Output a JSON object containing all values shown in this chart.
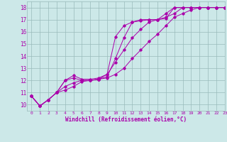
{
  "xlabel": "Windchill (Refroidissement éolien,°C)",
  "xlim": [
    -0.5,
    23
  ],
  "ylim": [
    9.5,
    18.5
  ],
  "xticks": [
    0,
    1,
    2,
    3,
    4,
    5,
    6,
    7,
    8,
    9,
    10,
    11,
    12,
    13,
    14,
    15,
    16,
    17,
    18,
    19,
    20,
    21,
    22,
    23
  ],
  "yticks": [
    10,
    11,
    12,
    13,
    14,
    15,
    16,
    17,
    18
  ],
  "bg_color": "#cce8e8",
  "line_color": "#aa00aa",
  "grid_color": "#99bbbb",
  "lines": [
    {
      "x": [
        0,
        1,
        2,
        3,
        4,
        5,
        6,
        7,
        8,
        9,
        10,
        11,
        12,
        13,
        14,
        15,
        16,
        17,
        18,
        19,
        20,
        21,
        22,
        23
      ],
      "y": [
        10.7,
        9.9,
        10.4,
        11.0,
        12.0,
        12.4,
        12.1,
        12.1,
        12.2,
        12.5,
        15.6,
        16.5,
        16.8,
        16.9,
        17.0,
        17.0,
        17.1,
        18.0,
        18.0,
        18.0,
        18.0,
        18.0,
        18.0,
        18.0
      ]
    },
    {
      "x": [
        0,
        1,
        2,
        3,
        4,
        5,
        6,
        7,
        8,
        9,
        10,
        11,
        12,
        13,
        14,
        15,
        16,
        17,
        18,
        19,
        20,
        21,
        22,
        23
      ],
      "y": [
        10.7,
        9.9,
        10.4,
        11.0,
        12.0,
        12.2,
        12.0,
        12.0,
        12.1,
        12.3,
        13.8,
        15.5,
        16.8,
        17.0,
        17.0,
        17.0,
        17.2,
        17.5,
        18.0,
        18.0,
        18.0,
        18.0,
        18.0,
        18.0
      ]
    },
    {
      "x": [
        0,
        1,
        2,
        3,
        4,
        5,
        6,
        7,
        8,
        9,
        10,
        11,
        12,
        13,
        14,
        15,
        16,
        17,
        18,
        19,
        20,
        21,
        22,
        23
      ],
      "y": [
        10.7,
        9.9,
        10.4,
        11.0,
        11.5,
        11.8,
        12.0,
        12.0,
        12.1,
        12.5,
        13.5,
        14.5,
        15.5,
        16.2,
        16.8,
        17.0,
        17.5,
        18.0,
        18.0,
        18.0,
        18.0,
        18.0,
        18.0,
        18.0
      ]
    },
    {
      "x": [
        0,
        1,
        2,
        3,
        4,
        5,
        6,
        7,
        8,
        9,
        10,
        11,
        12,
        13,
        14,
        15,
        16,
        17,
        18,
        19,
        20,
        21,
        22,
        23
      ],
      "y": [
        10.7,
        9.9,
        10.4,
        11.0,
        11.2,
        11.5,
        11.9,
        12.0,
        12.1,
        12.2,
        12.5,
        13.0,
        13.8,
        14.5,
        15.2,
        15.8,
        16.5,
        17.2,
        17.5,
        17.8,
        18.0,
        18.0,
        18.0,
        18.0
      ]
    }
  ]
}
